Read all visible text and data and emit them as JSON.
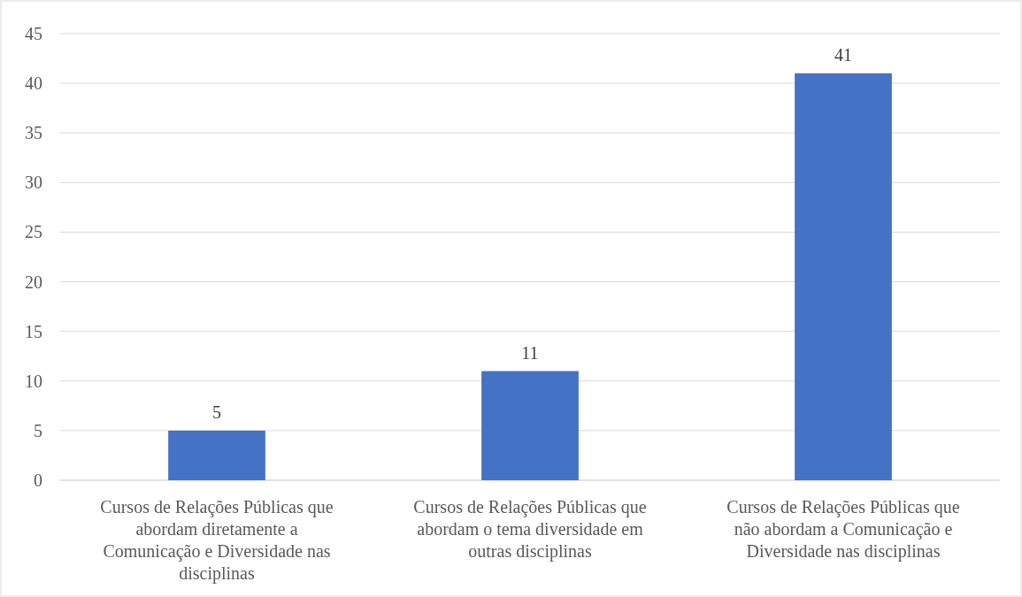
{
  "chart_data": {
    "type": "bar",
    "categories": [
      "Cursos de Relações Públicas que abordam diretamente a Comunicação e Diversidade nas disciplinas",
      "Cursos de Relações Públicas que abordam o tema diversidade em outras disciplinas",
      "Cursos de Relações Públicas que não abordam a Comunicação e Diversidade nas disciplinas"
    ],
    "values": [
      5,
      11,
      41
    ],
    "color": "#4472c4",
    "ylim": [
      0,
      45
    ],
    "yticks": [
      0,
      5,
      10,
      15,
      20,
      25,
      30,
      35,
      40,
      45
    ],
    "grid": "y",
    "data_labels": true
  }
}
